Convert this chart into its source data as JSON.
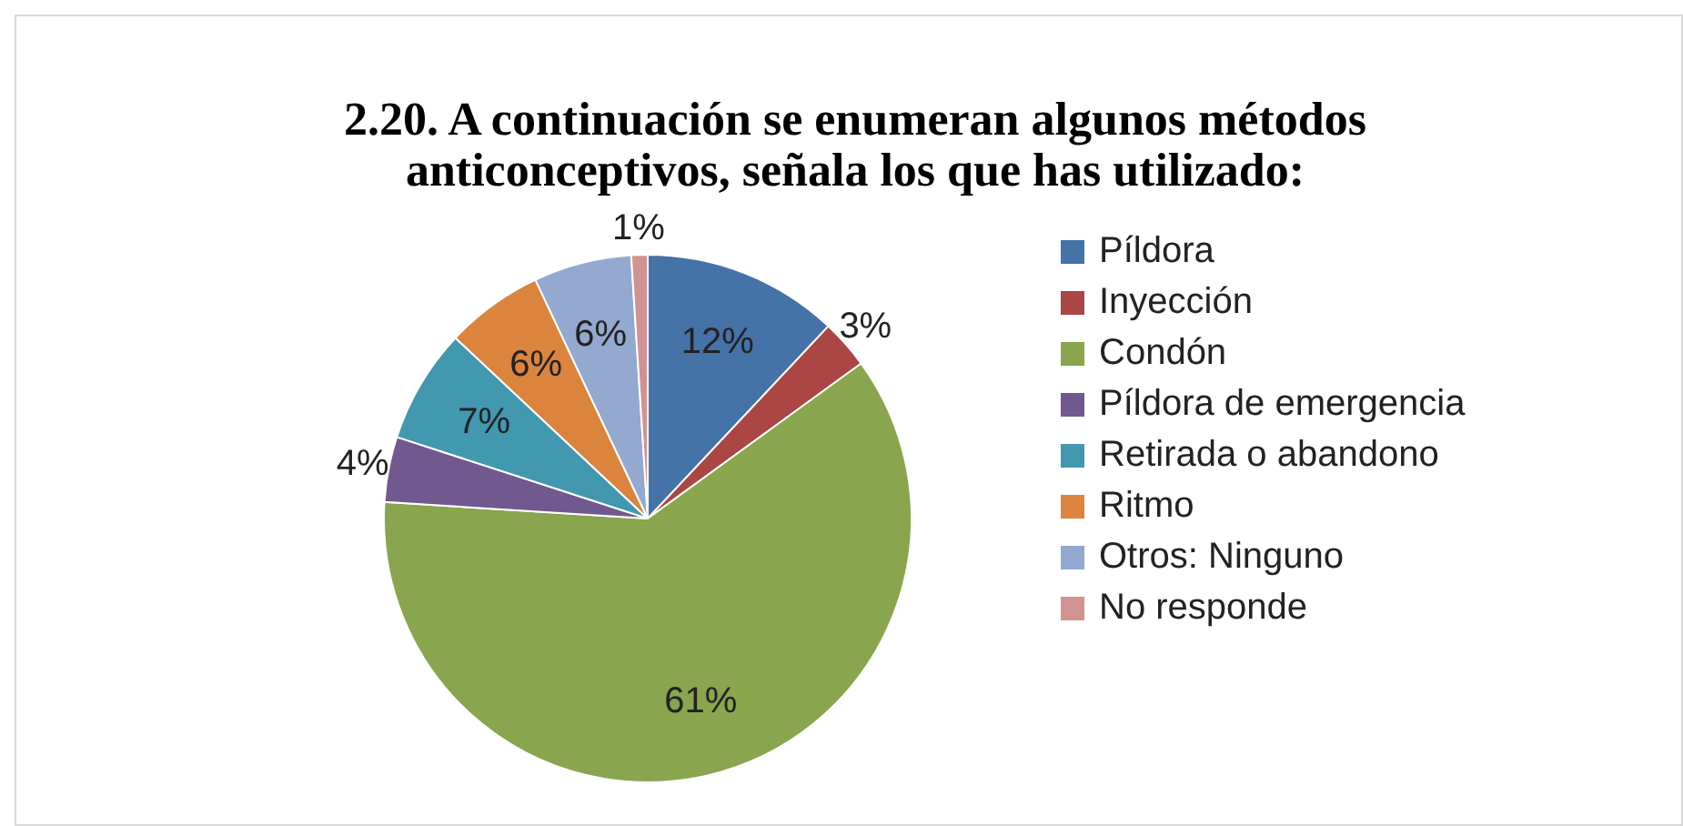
{
  "chart_data": {
    "type": "pie",
    "title": "2.20. A continuación se enumeran algunos métodos anticonceptivos, señala los que has utilizado:",
    "categories": [
      "Píldora",
      "Inyección",
      "Condón",
      "Píldora de emergencia",
      "Retirada o abandono",
      "Ritmo",
      "Otros: Ninguno",
      "No responde"
    ],
    "values": [
      12,
      3,
      61,
      4,
      7,
      6,
      6,
      1
    ],
    "colors": [
      "#4572a7",
      "#aa4643",
      "#89a54e",
      "#71588f",
      "#4198af",
      "#db843d",
      "#93a9cf",
      "#d19392"
    ],
    "value_labels": [
      "12%",
      "3%",
      "61%",
      "4%",
      "7%",
      "6%",
      "6%",
      "1%"
    ],
    "legend": "right"
  }
}
